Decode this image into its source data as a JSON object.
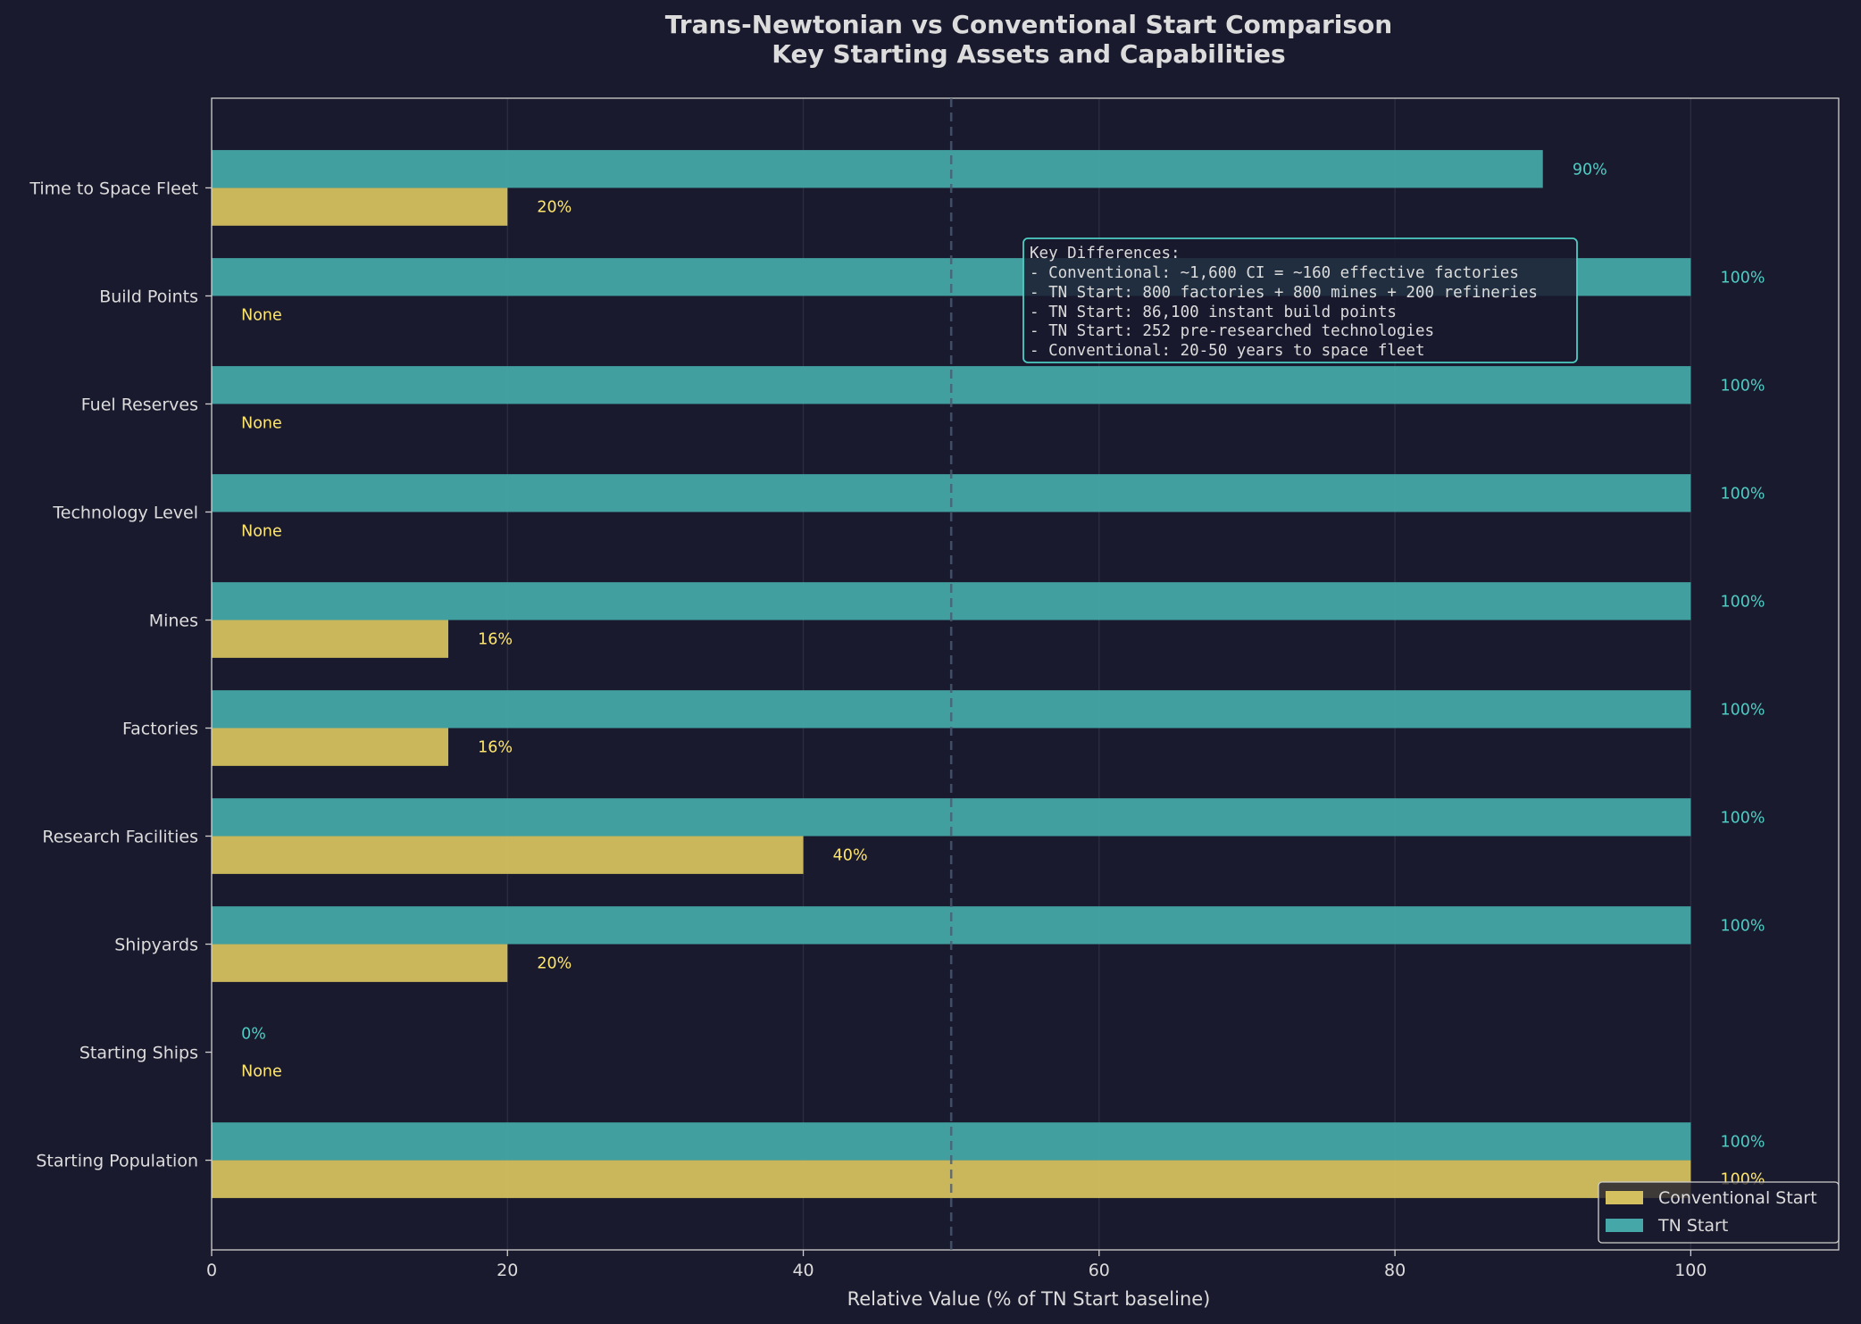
{
  "chart_data": {
    "type": "bar",
    "orientation": "horizontal",
    "title": "Trans-Newtonian vs Conventional Start Comparison",
    "subtitle": "Key Starting Assets and Capabilities",
    "xlabel": "Relative Value (% of TN Start baseline)",
    "ylabel": "",
    "xlim": [
      0,
      110
    ],
    "xticks": [
      "0",
      "20",
      "40",
      "60",
      "80",
      "100"
    ],
    "grid": "vertical",
    "reference_line": {
      "x": 50,
      "style": "dashed"
    },
    "categories": [
      "Starting Population",
      "Starting Ships",
      "Shipyards",
      "Research Facilities",
      "Factories",
      "Mines",
      "Technology Level",
      "Fuel Reserves",
      "Build Points",
      "Time to Space Fleet"
    ],
    "series": [
      {
        "name": "Conventional Start",
        "color": "#d4c05e",
        "values": [
          100,
          0,
          20,
          40,
          16,
          16,
          0,
          0,
          0,
          20
        ],
        "labels": [
          "100%",
          "None",
          "20%",
          "40%",
          "16%",
          "16%",
          "None",
          "None",
          "None",
          "20%"
        ],
        "label_color": "#ffe66d"
      },
      {
        "name": "TN Start",
        "color": "#45a7a7",
        "values": [
          100,
          0,
          100,
          100,
          100,
          100,
          100,
          100,
          100,
          90
        ],
        "labels": [
          "100%",
          "0%",
          "100%",
          "100%",
          "100%",
          "100%",
          "100%",
          "100%",
          "100%",
          "90%"
        ],
        "label_color": "#4ecdc4"
      }
    ],
    "legend": {
      "placement": "bottom-right",
      "entries": [
        "Conventional Start",
        "TN Start"
      ]
    },
    "annotation": {
      "lines": [
        "Key Differences:",
        "- Conventional: ~1,600 CI = ~160 effective factories",
        "- TN Start: 800 factories + 800 mines + 200 refineries",
        "- TN Start: 86,100 instant build points",
        "- TN Start: 252 pre-researched technologies",
        "- Conventional: 20-50 years to space fleet"
      ],
      "border_color": "#4ecdc4"
    }
  }
}
